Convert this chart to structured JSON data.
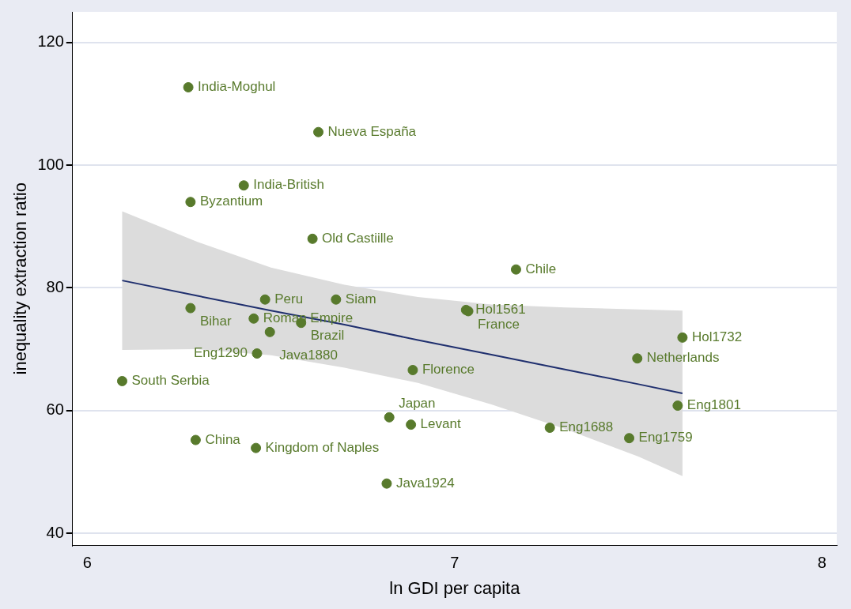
{
  "chart_data": {
    "type": "scatter",
    "xlabel": "ln GDI per capita",
    "ylabel": "inequality extraction ratio",
    "xlim": [
      5.96,
      8.04
    ],
    "ylim": [
      38,
      125
    ],
    "xticks": [
      6,
      7,
      8
    ],
    "yticks": [
      40,
      60,
      80,
      100,
      120
    ],
    "grid": "y",
    "series": [
      {
        "marker": "circle",
        "color": "#587a2c",
        "x": [
          6.275,
          6.629,
          6.426,
          6.281,
          6.613,
          7.167,
          6.484,
          6.677,
          6.281,
          6.453,
          6.582,
          6.497,
          7.031,
          7.037,
          6.462,
          6.886,
          6.095,
          7.62,
          7.497,
          7.607,
          6.822,
          6.881,
          7.259,
          7.475,
          6.295,
          6.459,
          6.815
        ],
        "values": [
          112.7,
          105.4,
          96.7,
          94.0,
          88.0,
          83.0,
          78.1,
          78.1,
          76.7,
          75.0,
          74.3,
          72.8,
          76.4,
          76.2,
          69.3,
          66.6,
          64.8,
          71.9,
          68.5,
          60.8,
          58.9,
          57.7,
          57.2,
          55.5,
          55.2,
          53.9,
          48.1
        ]
      },
      {
        "type": "line",
        "marker": "none",
        "color": "#1f2f6e",
        "x": [
          6.095,
          6.3,
          6.5,
          6.7,
          6.9,
          7.1,
          7.3,
          7.5,
          7.62
        ],
        "values": [
          81.2,
          78.7,
          76.3,
          74.0,
          71.5,
          69.1,
          66.7,
          64.3,
          62.8
        ],
        "lower": [
          69.9,
          70.0,
          69.0,
          67.0,
          64.5,
          61.0,
          57.0,
          52.5,
          49.3
        ],
        "upper": [
          92.5,
          87.5,
          83.3,
          80.5,
          78.5,
          77.3,
          76.8,
          76.5,
          76.3
        ]
      }
    ],
    "annotations": [
      {
        "text": "India-Moghul",
        "x": 6.275,
        "y": 112.7
      },
      {
        "text": "Nueva España",
        "x": 6.629,
        "y": 105.4
      },
      {
        "text": "India-British",
        "x": 6.426,
        "y": 96.7
      },
      {
        "text": "Byzantium",
        "x": 6.281,
        "y": 94.0
      },
      {
        "text": "Old Castiille",
        "x": 6.613,
        "y": 88.0
      },
      {
        "text": "Chile",
        "x": 7.167,
        "y": 83.0
      },
      {
        "text": "Peru",
        "x": 6.484,
        "y": 78.1
      },
      {
        "text": "Siam",
        "x": 6.677,
        "y": 78.1
      },
      {
        "text": "Bihar",
        "x": 6.281,
        "y": 76.7
      },
      {
        "text": "Roman Empire",
        "x": 6.453,
        "y": 75.0
      },
      {
        "text": "Brazil",
        "x": 6.582,
        "y": 74.3
      },
      {
        "text": "Java1880",
        "x": 6.497,
        "y": 72.8
      },
      {
        "text": "Hol1561",
        "x": 7.031,
        "y": 76.4
      },
      {
        "text": "France",
        "x": 7.037,
        "y": 76.2
      },
      {
        "text": "Eng1290",
        "x": 6.462,
        "y": 69.3
      },
      {
        "text": "Florence",
        "x": 6.886,
        "y": 66.6
      },
      {
        "text": "South Serbia",
        "x": 6.095,
        "y": 64.8
      },
      {
        "text": "Hol1732",
        "x": 7.62,
        "y": 71.9
      },
      {
        "text": "Netherlands",
        "x": 7.497,
        "y": 68.5
      },
      {
        "text": "Eng1801",
        "x": 7.607,
        "y": 60.8
      },
      {
        "text": "Japan",
        "x": 6.822,
        "y": 58.9
      },
      {
        "text": "Levant",
        "x": 6.881,
        "y": 57.7
      },
      {
        "text": "Eng1688",
        "x": 7.259,
        "y": 57.2
      },
      {
        "text": "Eng1759",
        "x": 7.475,
        "y": 55.5
      },
      {
        "text": "China",
        "x": 6.295,
        "y": 55.2
      },
      {
        "text": "Kingdom of Naples",
        "x": 6.459,
        "y": 53.9
      },
      {
        "text": "Java1924",
        "x": 6.815,
        "y": 48.1
      }
    ]
  }
}
